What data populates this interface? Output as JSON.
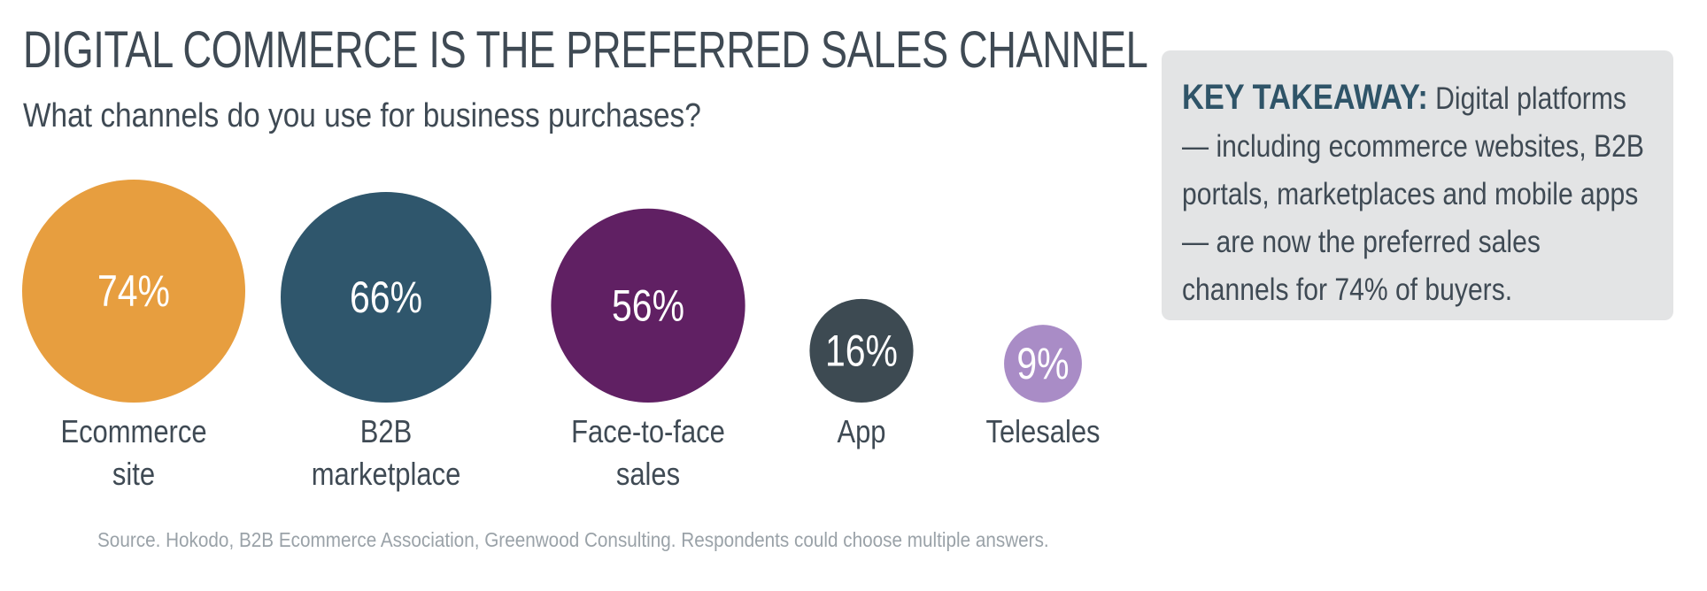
{
  "header": {
    "title": "DIGITAL COMMERCE IS THE PREFERRED SALES CHANNEL",
    "subtitle": "What channels do you use for business purchases?"
  },
  "chart_data": {
    "type": "bubble",
    "title": "DIGITAL COMMERCE IS THE PREFERRED SALES CHANNEL",
    "subtitle": "What channels do you use for business purchases?",
    "unit": "%",
    "categories": [
      "Ecommerce site",
      "B2B marketplace",
      "Face-to-face sales",
      "App",
      "Telesales"
    ],
    "category_lines": [
      [
        "Ecommerce",
        "site"
      ],
      [
        "B2B",
        "marketplace"
      ],
      [
        "Face-to-face",
        "sales"
      ],
      [
        "App"
      ],
      [
        "Telesales"
      ]
    ],
    "values": [
      74,
      66,
      56,
      16,
      9
    ],
    "value_labels": [
      "74%",
      "66%",
      "56%",
      "16%",
      "9%"
    ],
    "colors": [
      "#e79e3f",
      "#2f566c",
      "#602063",
      "#3d4a52",
      "#a98cc6"
    ]
  },
  "takeaway": {
    "heading": "KEY TAKEAWAY:",
    "body": " Digital platforms — including ecommerce websites, B2B portals, marketplaces and mobile apps — are now the preferred sales channels for 74% of buyers."
  },
  "footer": {
    "source": "Source. Hokodo, B2B Ecommerce Association, Greenwood Consulting. Respondents could choose multiple answers."
  }
}
